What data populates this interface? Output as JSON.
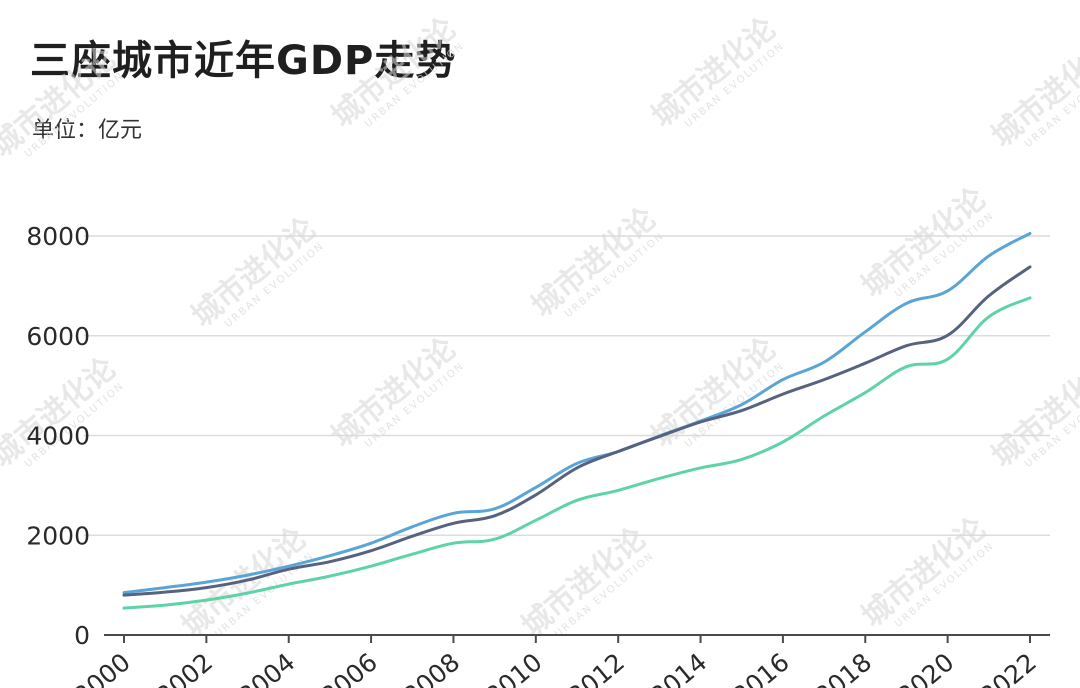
{
  "chart_data": {
    "type": "line",
    "title": "三座城市近年GDP走势",
    "subtitle": "单位：亿元",
    "xlabel": "",
    "ylabel": "",
    "x": [
      2000,
      2001,
      2002,
      2003,
      2004,
      2005,
      2006,
      2007,
      2008,
      2009,
      2010,
      2011,
      2012,
      2013,
      2014,
      2015,
      2016,
      2017,
      2018,
      2019,
      2020,
      2021,
      2022
    ],
    "x_tick_labels": [
      "2000",
      "2002",
      "2004",
      "2006",
      "2008",
      "2010",
      "2012",
      "2014",
      "2016",
      "2018",
      "2020",
      "2022"
    ],
    "y_ticks": [
      0,
      2000,
      4000,
      6000,
      8000
    ],
    "ylim": [
      0,
      8000
    ],
    "grid": true,
    "legend": "none",
    "series": [
      {
        "color": "#5aa5d6",
        "values": [
          850,
          950,
          1060,
          1200,
          1380,
          1590,
          1840,
          2170,
          2440,
          2530,
          2960,
          3440,
          3680,
          3990,
          4290,
          4620,
          5120,
          5470,
          6080,
          6650,
          6900,
          7600,
          8050
        ]
      },
      {
        "color": "#56627f",
        "values": [
          800,
          860,
          950,
          1100,
          1320,
          1470,
          1690,
          1980,
          2240,
          2390,
          2810,
          3350,
          3680,
          3980,
          4270,
          4500,
          4830,
          5120,
          5450,
          5800,
          6010,
          6800,
          7380
        ]
      },
      {
        "color": "#5dd3a6",
        "values": [
          540,
          600,
          700,
          840,
          1020,
          1180,
          1380,
          1620,
          1840,
          1920,
          2300,
          2700,
          2900,
          3140,
          3350,
          3520,
          3870,
          4390,
          4860,
          5380,
          5530,
          6380,
          6760
        ]
      }
    ]
  },
  "watermark": {
    "text": "城市进化论",
    "sub": "URBAN EVOLUTION"
  }
}
